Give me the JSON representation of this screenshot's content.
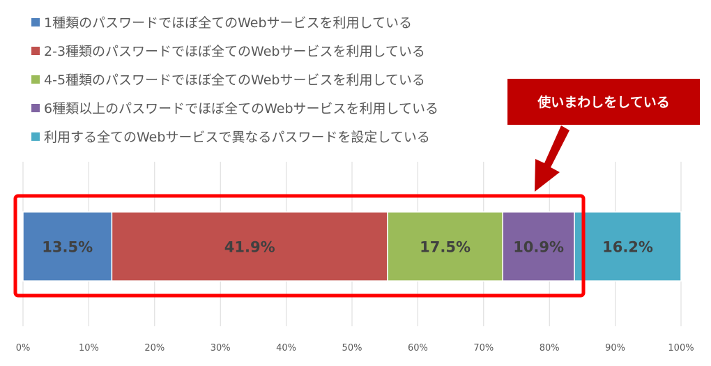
{
  "chart_data": {
    "type": "bar",
    "orientation": "horizontal",
    "stacked": "100%",
    "categories": [
      ""
    ],
    "series": [
      {
        "name": "1種類のパスワードでほぼ全てのWebサービスを利用している",
        "values": [
          13.5
        ],
        "label": "13.5%",
        "color": "#4F81BD"
      },
      {
        "name": "2-3種類のパスワードでほぼ全てのWebサービスを利用している",
        "values": [
          41.9
        ],
        "label": "41.9%",
        "color": "#C0504D"
      },
      {
        "name": "4-5種類のパスワードでほぼ全てのWebサービスを利用している",
        "values": [
          17.5
        ],
        "label": "17.5%",
        "color": "#9BBB59"
      },
      {
        "name": "6種類以上のパスワードでほぼ全てのWebサービスを利用している",
        "values": [
          10.9
        ],
        "label": "10.9%",
        "color": "#8064A2"
      },
      {
        "name": "利用する全てのWebサービスで異なるパスワードを設定している",
        "values": [
          16.2
        ],
        "label": "16.2%",
        "color": "#4BACC6"
      }
    ],
    "xlim": [
      0,
      100
    ],
    "xticks": [
      "0%",
      "10%",
      "20%",
      "30%",
      "40%",
      "50%",
      "60%",
      "70%",
      "80%",
      "90%",
      "100%"
    ],
    "grid": true,
    "legend_position": "top",
    "annotation": {
      "text": "使いまわしをしている",
      "covers_series": [
        0,
        1,
        2,
        3
      ],
      "box_color": "#FF0000",
      "callout_color": "#C00000"
    }
  }
}
